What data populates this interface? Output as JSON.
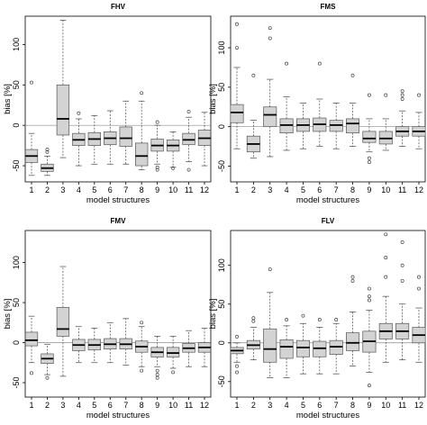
{
  "chart_data": [
    {
      "type": "box",
      "title": "FHV",
      "xlabel": "model structures",
      "ylabel": "bias [%]",
      "categories": [
        "1",
        "2",
        "3",
        "4",
        "5",
        "6",
        "7",
        "8",
        "9",
        "10",
        "11",
        "12"
      ],
      "ylim": [
        -70,
        135
      ],
      "yticks": [
        -50,
        0,
        50,
        100
      ],
      "reference_line": 0,
      "boxes": [
        {
          "whisker_low": -62,
          "q1": -46,
          "median": -38,
          "q3": -30,
          "whisker_high": -10,
          "outliers": [
            53
          ]
        },
        {
          "whisker_low": -62,
          "q1": -57,
          "median": -53,
          "q3": -48,
          "whisker_high": -38,
          "outliers": [
            -30,
            -33
          ]
        },
        {
          "whisker_low": -40,
          "q1": -12,
          "median": 8,
          "q3": 50,
          "whisker_high": 130,
          "outliers": []
        },
        {
          "whisker_low": -50,
          "q1": -25,
          "median": -18,
          "q3": -10,
          "whisker_high": 8,
          "outliers": [
            15
          ]
        },
        {
          "whisker_low": -48,
          "q1": -25,
          "median": -17,
          "q3": -9,
          "whisker_high": 12,
          "outliers": []
        },
        {
          "whisker_low": -48,
          "q1": -24,
          "median": -16,
          "q3": -8,
          "whisker_high": 18,
          "outliers": []
        },
        {
          "whisker_low": -48,
          "q1": -26,
          "median": -16,
          "q3": -2,
          "whisker_high": 30,
          "outliers": []
        },
        {
          "whisker_low": -55,
          "q1": -50,
          "median": -38,
          "q3": -22,
          "whisker_high": 30,
          "outliers": [
            40
          ]
        },
        {
          "whisker_low": -48,
          "q1": -32,
          "median": -25,
          "q3": -17,
          "whisker_high": 0,
          "outliers": [
            -52,
            -55,
            4
          ]
        },
        {
          "whisker_low": -52,
          "q1": -32,
          "median": -25,
          "q3": -18,
          "whisker_high": -8,
          "outliers": [
            -53
          ]
        },
        {
          "whisker_low": -45,
          "q1": -24,
          "median": -18,
          "q3": -10,
          "whisker_high": 10,
          "outliers": [
            -55,
            17
          ]
        },
        {
          "whisker_low": -50,
          "q1": -25,
          "median": -16,
          "q3": -6,
          "whisker_high": 16,
          "outliers": []
        }
      ]
    },
    {
      "type": "box",
      "title": "FMS",
      "xlabel": "model structures",
      "ylabel": "bias [%]",
      "categories": [
        "1",
        "2",
        "3",
        "4",
        "5",
        "6",
        "7",
        "8",
        "9",
        "10",
        "11",
        "12"
      ],
      "ylim": [
        -70,
        140
      ],
      "yticks": [
        -50,
        0,
        50,
        100
      ],
      "reference_line": 0,
      "boxes": [
        {
          "whisker_low": -28,
          "q1": 5,
          "median": 18,
          "q3": 28,
          "whisker_high": 75,
          "outliers": [
            100,
            130
          ]
        },
        {
          "whisker_low": -40,
          "q1": -32,
          "median": -22,
          "q3": -12,
          "whisker_high": 8,
          "outliers": [
            65
          ]
        },
        {
          "whisker_low": -38,
          "q1": 0,
          "median": 15,
          "q3": 25,
          "whisker_high": 60,
          "outliers": [
            112,
            125
          ]
        },
        {
          "whisker_low": -30,
          "q1": -8,
          "median": 2,
          "q3": 10,
          "whisker_high": 38,
          "outliers": [
            80
          ]
        },
        {
          "whisker_low": -28,
          "q1": -6,
          "median": 2,
          "q3": 10,
          "whisker_high": 30,
          "outliers": []
        },
        {
          "whisker_low": -25,
          "q1": -6,
          "median": 3,
          "q3": 11,
          "whisker_high": 35,
          "outliers": [
            80
          ]
        },
        {
          "whisker_low": -28,
          "q1": -6,
          "median": 2,
          "q3": 8,
          "whisker_high": 30,
          "outliers": []
        },
        {
          "whisker_low": -25,
          "q1": -8,
          "median": 4,
          "q3": 10,
          "whisker_high": 30,
          "outliers": [
            65
          ]
        },
        {
          "whisker_low": -32,
          "q1": -20,
          "median": -15,
          "q3": -6,
          "whisker_high": 10,
          "outliers": [
            -40,
            -45,
            40
          ]
        },
        {
          "whisker_low": -30,
          "q1": -22,
          "median": -15,
          "q3": -6,
          "whisker_high": 10,
          "outliers": [
            40
          ]
        },
        {
          "whisker_low": -25,
          "q1": -12,
          "median": -6,
          "q3": 0,
          "whisker_high": 20,
          "outliers": [
            35,
            40,
            45
          ]
        },
        {
          "whisker_low": -28,
          "q1": -12,
          "median": -6,
          "q3": 0,
          "whisker_high": 18,
          "outliers": [
            40
          ]
        }
      ]
    },
    {
      "type": "box",
      "title": "FMV",
      "xlabel": "model structures",
      "ylabel": "bias [%]",
      "categories": [
        "1",
        "2",
        "3",
        "4",
        "5",
        "6",
        "7",
        "8",
        "9",
        "10",
        "11",
        "12"
      ],
      "ylim": [
        -68,
        140
      ],
      "yticks": [
        -50,
        0,
        50,
        100
      ],
      "reference_line": 0,
      "boxes": [
        {
          "whisker_low": -25,
          "q1": -4,
          "median": 3,
          "q3": 13,
          "whisker_high": 33,
          "outliers": [
            -38
          ]
        },
        {
          "whisker_low": -40,
          "q1": -26,
          "median": -20,
          "q3": -14,
          "whisker_high": -2,
          "outliers": [
            -44
          ]
        },
        {
          "whisker_low": -42,
          "q1": 8,
          "median": 17,
          "q3": 44,
          "whisker_high": 95,
          "outliers": []
        },
        {
          "whisker_low": -25,
          "q1": -10,
          "median": -3,
          "q3": 4,
          "whisker_high": 20,
          "outliers": []
        },
        {
          "whisker_low": -25,
          "q1": -9,
          "median": -3,
          "q3": 4,
          "whisker_high": 18,
          "outliers": []
        },
        {
          "whisker_low": -25,
          "q1": -8,
          "median": -2,
          "q3": 5,
          "whisker_high": 25,
          "outliers": []
        },
        {
          "whisker_low": -28,
          "q1": -8,
          "median": -2,
          "q3": 5,
          "whisker_high": 30,
          "outliers": []
        },
        {
          "whisker_low": -30,
          "q1": -12,
          "median": -5,
          "q3": 2,
          "whisker_high": 20,
          "outliers": [
            25,
            -35
          ]
        },
        {
          "whisker_low": -30,
          "q1": -18,
          "median": -12,
          "q3": -6,
          "whisker_high": 8,
          "outliers": [
            -35,
            -40,
            -44
          ]
        },
        {
          "whisker_low": -32,
          "q1": -18,
          "median": -13,
          "q3": -6,
          "whisker_high": 8,
          "outliers": [
            -37
          ]
        },
        {
          "whisker_low": -30,
          "q1": -12,
          "median": -7,
          "q3": -1,
          "whisker_high": 15,
          "outliers": []
        },
        {
          "whisker_low": -30,
          "q1": -12,
          "median": -6,
          "q3": 0,
          "whisker_high": 18,
          "outliers": []
        }
      ]
    },
    {
      "type": "box",
      "title": "FLV",
      "xlabel": "model structures",
      "ylabel": "bias [%]",
      "categories": [
        "1",
        "2",
        "3",
        "4",
        "5",
        "6",
        "7",
        "8",
        "9",
        "10",
        "11",
        "12"
      ],
      "ylim": [
        -70,
        145
      ],
      "yticks": [
        -50,
        0,
        50,
        100
      ],
      "reference_line": 0,
      "boxes": [
        {
          "whisker_low": -25,
          "q1": -14,
          "median": -10,
          "q3": -6,
          "whisker_high": 0,
          "outliers": [
            -38,
            -30,
            8
          ]
        },
        {
          "whisker_low": -22,
          "q1": -8,
          "median": -3,
          "q3": 3,
          "whisker_high": 20,
          "outliers": [
            28,
            32
          ]
        },
        {
          "whisker_low": -45,
          "q1": -25,
          "median": -8,
          "q3": 18,
          "whisker_high": 65,
          "outliers": [
            95
          ]
        },
        {
          "whisker_low": -45,
          "q1": -20,
          "median": -5,
          "q3": 4,
          "whisker_high": 22,
          "outliers": [
            30
          ]
        },
        {
          "whisker_low": -40,
          "q1": -18,
          "median": -6,
          "q3": 3,
          "whisker_high": 25,
          "outliers": [
            35
          ]
        },
        {
          "whisker_low": -40,
          "q1": -18,
          "median": -7,
          "q3": 2,
          "whisker_high": 20,
          "outliers": [
            30
          ]
        },
        {
          "whisker_low": -40,
          "q1": -15,
          "median": -5,
          "q3": 3,
          "whisker_high": 25,
          "outliers": [
            30
          ]
        },
        {
          "whisker_low": -30,
          "q1": -10,
          "median": 0,
          "q3": 13,
          "whisker_high": 40,
          "outliers": [
            80,
            85
          ]
        },
        {
          "whisker_low": -38,
          "q1": -12,
          "median": 2,
          "q3": 15,
          "whisker_high": 42,
          "outliers": [
            -55,
            55,
            60,
            70
          ]
        },
        {
          "whisker_low": -25,
          "q1": 5,
          "median": 15,
          "q3": 25,
          "whisker_high": 60,
          "outliers": [
            85,
            110,
            140
          ]
        },
        {
          "whisker_low": -22,
          "q1": 5,
          "median": 15,
          "q3": 25,
          "whisker_high": 50,
          "outliers": [
            80,
            100,
            130
          ]
        },
        {
          "whisker_low": -25,
          "q1": 0,
          "median": 10,
          "q3": 20,
          "whisker_high": 45,
          "outliers": [
            70,
            85
          ]
        }
      ]
    }
  ]
}
